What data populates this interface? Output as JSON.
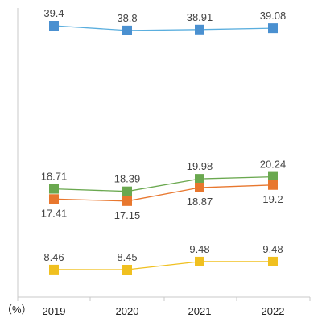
{
  "chart_data": {
    "type": "line",
    "categories": [
      "2019",
      "2020",
      "2021",
      "2022"
    ],
    "unit_label": "（%）",
    "ylim": [
      0,
      42
    ],
    "grid": false,
    "series": [
      {
        "values": [
          39.4,
          38.8,
          38.91,
          39.08
        ],
        "labels": [
          "39.4",
          "38.8",
          "38.91",
          "39.08"
        ],
        "color": "#4a90d0",
        "line_color": "#5aaede",
        "label_pos": "above"
      },
      {
        "values": [
          18.71,
          18.39,
          19.98,
          20.24
        ],
        "labels": [
          "18.71",
          "18.39",
          "19.98",
          "20.24"
        ],
        "color": "#6aa84f",
        "line_color": "#6aa84f",
        "label_pos": "above"
      },
      {
        "values": [
          17.41,
          17.15,
          18.87,
          19.2
        ],
        "labels": [
          "17.41",
          "17.15",
          "18.87",
          "19.2"
        ],
        "color": "#e8772e",
        "line_color": "#e8772e",
        "label_pos": "below"
      },
      {
        "values": [
          8.46,
          8.45,
          9.48,
          9.48
        ],
        "labels": [
          "8.46",
          "8.45",
          "9.48",
          "9.48"
        ],
        "color": "#f0c020",
        "line_color": "#f0c020",
        "label_pos": "above"
      }
    ]
  }
}
